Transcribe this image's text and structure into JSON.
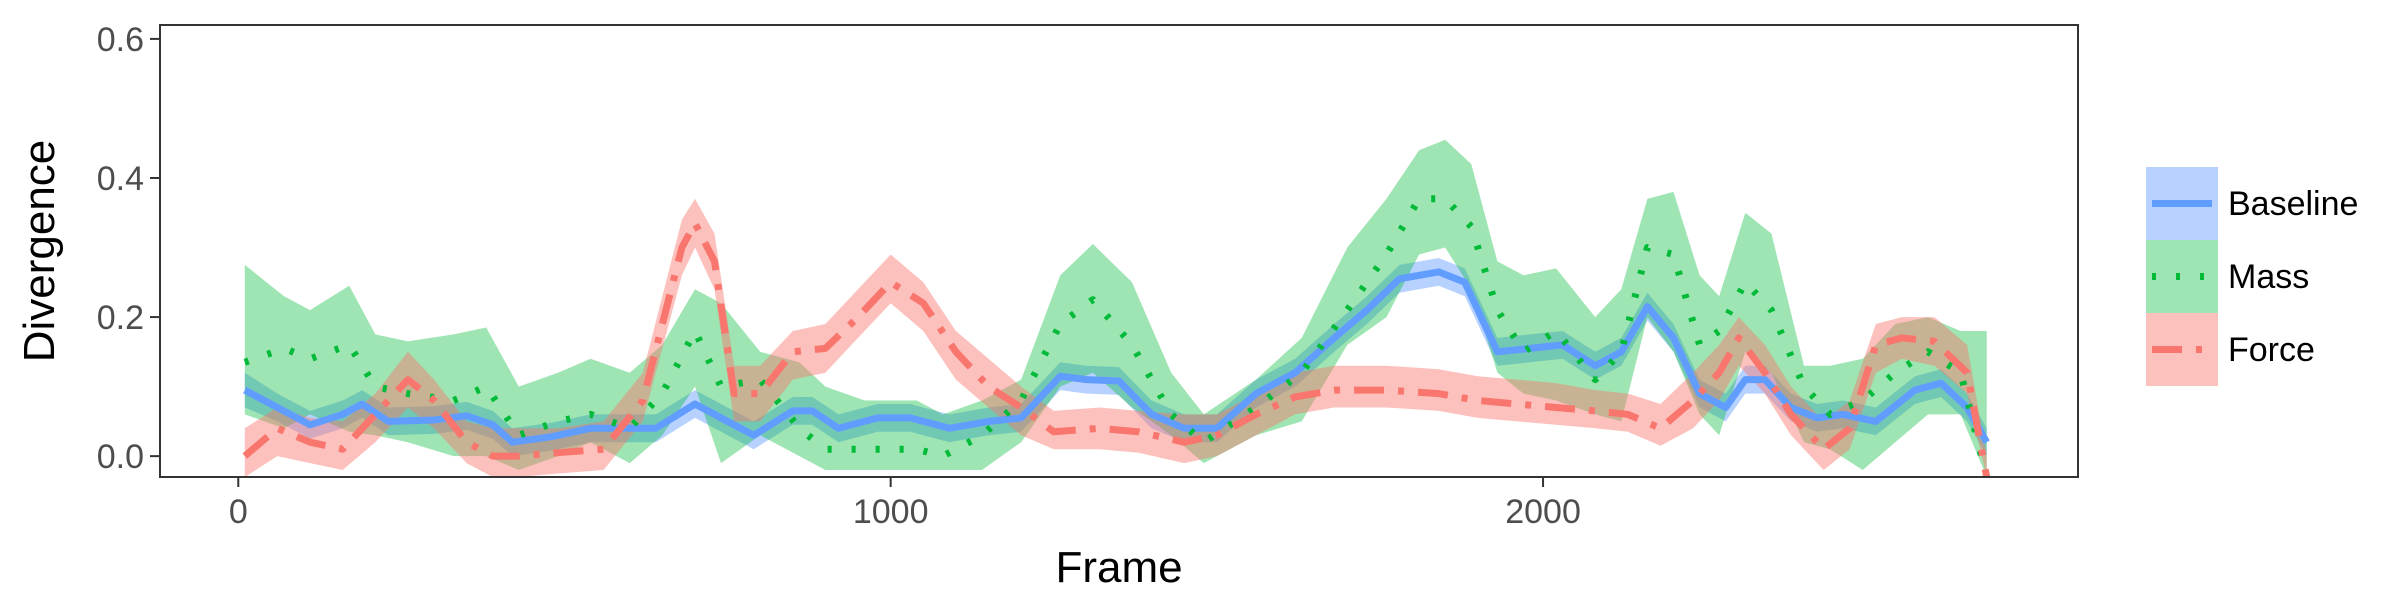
{
  "chart_data": {
    "type": "line",
    "xlabel": "Frame",
    "ylabel": "Divergence",
    "xlim": [
      -120,
      2820
    ],
    "ylim": [
      -0.03,
      0.62
    ],
    "xticks": [
      0,
      1000,
      2000
    ],
    "xtick_labels": [
      "0",
      "1000",
      "2000"
    ],
    "yticks": [
      0.0,
      0.2,
      0.4,
      0.6
    ],
    "ytick_labels": [
      "0.0",
      "0.2",
      "0.4",
      "0.6"
    ],
    "grid": false,
    "legend_position": "right",
    "series": [
      {
        "name": "Baseline",
        "color": "#619CFF",
        "line_style": "solid",
        "ribbon_opacity": 0.45,
        "points": [
          [
            10,
            0.095,
            0.07,
            0.12
          ],
          [
            60,
            0.07,
            0.05,
            0.09
          ],
          [
            110,
            0.045,
            0.025,
            0.065
          ],
          [
            160,
            0.06,
            0.04,
            0.08
          ],
          [
            190,
            0.075,
            0.055,
            0.095
          ],
          [
            230,
            0.05,
            0.03,
            0.07
          ],
          [
            300,
            0.052,
            0.032,
            0.072
          ],
          [
            350,
            0.058,
            0.038,
            0.078
          ],
          [
            390,
            0.045,
            0.025,
            0.065
          ],
          [
            420,
            0.02,
            0.0,
            0.04
          ],
          [
            480,
            0.028,
            0.008,
            0.048
          ],
          [
            540,
            0.04,
            0.02,
            0.06
          ],
          [
            600,
            0.04,
            0.02,
            0.06
          ],
          [
            640,
            0.04,
            0.02,
            0.06
          ],
          [
            700,
            0.075,
            0.055,
            0.095
          ],
          [
            750,
            0.05,
            0.03,
            0.07
          ],
          [
            790,
            0.03,
            0.01,
            0.05
          ],
          [
            850,
            0.065,
            0.045,
            0.085
          ],
          [
            880,
            0.065,
            0.045,
            0.085
          ],
          [
            920,
            0.04,
            0.02,
            0.06
          ],
          [
            980,
            0.055,
            0.035,
            0.075
          ],
          [
            1030,
            0.055,
            0.035,
            0.075
          ],
          [
            1090,
            0.04,
            0.02,
            0.06
          ],
          [
            1150,
            0.05,
            0.03,
            0.07
          ],
          [
            1200,
            0.055,
            0.035,
            0.075
          ],
          [
            1260,
            0.115,
            0.095,
            0.135
          ],
          [
            1300,
            0.11,
            0.09,
            0.13
          ],
          [
            1350,
            0.108,
            0.088,
            0.128
          ],
          [
            1400,
            0.06,
            0.04,
            0.08
          ],
          [
            1450,
            0.04,
            0.02,
            0.06
          ],
          [
            1500,
            0.04,
            0.02,
            0.06
          ],
          [
            1560,
            0.09,
            0.07,
            0.11
          ],
          [
            1620,
            0.12,
            0.1,
            0.14
          ],
          [
            1680,
            0.17,
            0.15,
            0.19
          ],
          [
            1730,
            0.21,
            0.19,
            0.23
          ],
          [
            1780,
            0.255,
            0.235,
            0.275
          ],
          [
            1840,
            0.265,
            0.245,
            0.285
          ],
          [
            1880,
            0.25,
            0.23,
            0.27
          ],
          [
            1930,
            0.15,
            0.13,
            0.17
          ],
          [
            1980,
            0.155,
            0.135,
            0.175
          ],
          [
            2030,
            0.16,
            0.14,
            0.18
          ],
          [
            2080,
            0.13,
            0.11,
            0.15
          ],
          [
            2120,
            0.15,
            0.13,
            0.17
          ],
          [
            2160,
            0.215,
            0.195,
            0.235
          ],
          [
            2200,
            0.17,
            0.15,
            0.19
          ],
          [
            2240,
            0.09,
            0.07,
            0.11
          ],
          [
            2280,
            0.07,
            0.05,
            0.09
          ],
          [
            2310,
            0.11,
            0.09,
            0.13
          ],
          [
            2340,
            0.11,
            0.09,
            0.13
          ],
          [
            2380,
            0.07,
            0.05,
            0.09
          ],
          [
            2420,
            0.055,
            0.035,
            0.075
          ],
          [
            2460,
            0.06,
            0.04,
            0.08
          ],
          [
            2510,
            0.05,
            0.03,
            0.07
          ],
          [
            2570,
            0.095,
            0.075,
            0.115
          ],
          [
            2610,
            0.105,
            0.085,
            0.125
          ],
          [
            2650,
            0.07,
            0.05,
            0.09
          ],
          [
            2680,
            0.02,
            0.0,
            0.04
          ]
        ]
      },
      {
        "name": "Mass",
        "color": "#00BA38",
        "line_style": "dotted",
        "ribbon_opacity": 0.38,
        "points": [
          [
            10,
            0.135,
            0.06,
            0.275
          ],
          [
            70,
            0.155,
            0.04,
            0.23
          ],
          [
            110,
            0.14,
            0.06,
            0.21
          ],
          [
            170,
            0.16,
            0.035,
            0.245
          ],
          [
            210,
            0.1,
            0.03,
            0.175
          ],
          [
            260,
            0.09,
            0.02,
            0.165
          ],
          [
            330,
            0.08,
            0.0,
            0.175
          ],
          [
            380,
            0.1,
            0.0,
            0.185
          ],
          [
            430,
            0.03,
            -0.02,
            0.1
          ],
          [
            490,
            0.05,
            0.0,
            0.12
          ],
          [
            540,
            0.06,
            0.02,
            0.14
          ],
          [
            600,
            0.04,
            -0.01,
            0.12
          ],
          [
            650,
            0.09,
            0.03,
            0.16
          ],
          [
            700,
            0.18,
            0.1,
            0.24
          ],
          [
            740,
            0.1,
            -0.01,
            0.22
          ],
          [
            800,
            0.11,
            0.03,
            0.15
          ],
          [
            860,
            0.04,
            0.0,
            0.135
          ],
          [
            900,
            0.01,
            -0.02,
            0.1
          ],
          [
            960,
            0.01,
            -0.02,
            0.08
          ],
          [
            1040,
            0.01,
            -0.02,
            0.08
          ],
          [
            1080,
            0.0,
            -0.02,
            0.06
          ],
          [
            1140,
            0.03,
            -0.02,
            0.08
          ],
          [
            1200,
            0.08,
            0.02,
            0.11
          ],
          [
            1260,
            0.19,
            0.1,
            0.26
          ],
          [
            1310,
            0.225,
            0.12,
            0.305
          ],
          [
            1370,
            0.16,
            0.07,
            0.25
          ],
          [
            1430,
            0.06,
            0.03,
            0.12
          ],
          [
            1480,
            0.02,
            -0.01,
            0.06
          ],
          [
            1560,
            0.07,
            0.03,
            0.11
          ],
          [
            1630,
            0.12,
            0.05,
            0.17
          ],
          [
            1700,
            0.21,
            0.16,
            0.3
          ],
          [
            1760,
            0.29,
            0.2,
            0.37
          ],
          [
            1810,
            0.37,
            0.29,
            0.44
          ],
          [
            1850,
            0.37,
            0.3,
            0.455
          ],
          [
            1890,
            0.33,
            0.24,
            0.42
          ],
          [
            1930,
            0.21,
            0.12,
            0.28
          ],
          [
            1970,
            0.15,
            0.09,
            0.26
          ],
          [
            2020,
            0.18,
            0.08,
            0.27
          ],
          [
            2080,
            0.11,
            0.06,
            0.2
          ],
          [
            2120,
            0.15,
            0.05,
            0.24
          ],
          [
            2160,
            0.3,
            0.2,
            0.37
          ],
          [
            2200,
            0.29,
            0.15,
            0.38
          ],
          [
            2240,
            0.16,
            0.06,
            0.26
          ],
          [
            2270,
            0.18,
            0.03,
            0.23
          ],
          [
            2310,
            0.25,
            0.15,
            0.35
          ],
          [
            2350,
            0.21,
            0.12,
            0.32
          ],
          [
            2400,
            0.1,
            0.02,
            0.13
          ],
          [
            2440,
            0.06,
            0.01,
            0.13
          ],
          [
            2490,
            0.08,
            -0.02,
            0.14
          ],
          [
            2540,
            0.12,
            0.02,
            0.19
          ],
          [
            2590,
            0.15,
            0.06,
            0.2
          ],
          [
            2640,
            0.12,
            0.06,
            0.18
          ],
          [
            2680,
            -0.03,
            -0.03,
            0.18
          ]
        ]
      },
      {
        "name": "Force",
        "color": "#F8766D",
        "line_style": "dashdot",
        "ribbon_opacity": 0.45,
        "points": [
          [
            10,
            0.0,
            -0.03,
            0.04
          ],
          [
            60,
            0.04,
            0.0,
            0.07
          ],
          [
            110,
            0.02,
            -0.01,
            0.055
          ],
          [
            160,
            0.01,
            -0.02,
            0.05
          ],
          [
            210,
            0.06,
            0.02,
            0.09
          ],
          [
            260,
            0.11,
            0.07,
            0.15
          ],
          [
            300,
            0.08,
            0.04,
            0.11
          ],
          [
            350,
            0.02,
            -0.01,
            0.05
          ],
          [
            390,
            0.0,
            -0.03,
            0.04
          ],
          [
            430,
            0.0,
            -0.03,
            0.04
          ],
          [
            490,
            0.005,
            -0.025,
            0.04
          ],
          [
            560,
            0.01,
            -0.02,
            0.05
          ],
          [
            620,
            0.08,
            0.05,
            0.12
          ],
          [
            680,
            0.3,
            0.26,
            0.34
          ],
          [
            700,
            0.335,
            0.3,
            0.37
          ],
          [
            730,
            0.28,
            0.24,
            0.32
          ],
          [
            760,
            0.09,
            0.05,
            0.13
          ],
          [
            800,
            0.09,
            0.05,
            0.13
          ],
          [
            850,
            0.15,
            0.11,
            0.18
          ],
          [
            900,
            0.155,
            0.12,
            0.19
          ],
          [
            950,
            0.2,
            0.17,
            0.24
          ],
          [
            1000,
            0.25,
            0.22,
            0.29
          ],
          [
            1050,
            0.22,
            0.18,
            0.25
          ],
          [
            1100,
            0.15,
            0.11,
            0.18
          ],
          [
            1150,
            0.1,
            0.07,
            0.14
          ],
          [
            1200,
            0.07,
            0.03,
            0.1
          ],
          [
            1250,
            0.035,
            0.01,
            0.065
          ],
          [
            1320,
            0.04,
            0.01,
            0.07
          ],
          [
            1380,
            0.035,
            0.005,
            0.065
          ],
          [
            1450,
            0.02,
            -0.01,
            0.06
          ],
          [
            1500,
            0.03,
            0.0,
            0.06
          ],
          [
            1560,
            0.06,
            0.03,
            0.09
          ],
          [
            1620,
            0.085,
            0.06,
            0.12
          ],
          [
            1680,
            0.095,
            0.07,
            0.13
          ],
          [
            1760,
            0.095,
            0.07,
            0.13
          ],
          [
            1840,
            0.09,
            0.065,
            0.125
          ],
          [
            1900,
            0.08,
            0.055,
            0.115
          ],
          [
            1960,
            0.075,
            0.05,
            0.11
          ],
          [
            2020,
            0.07,
            0.045,
            0.105
          ],
          [
            2080,
            0.065,
            0.04,
            0.095
          ],
          [
            2130,
            0.06,
            0.035,
            0.09
          ],
          [
            2180,
            0.04,
            0.015,
            0.075
          ],
          [
            2230,
            0.08,
            0.04,
            0.12
          ],
          [
            2270,
            0.12,
            0.08,
            0.16
          ],
          [
            2300,
            0.17,
            0.13,
            0.2
          ],
          [
            2340,
            0.12,
            0.09,
            0.16
          ],
          [
            2380,
            0.06,
            0.03,
            0.1
          ],
          [
            2430,
            0.01,
            -0.02,
            0.05
          ],
          [
            2470,
            0.04,
            0.01,
            0.08
          ],
          [
            2510,
            0.16,
            0.12,
            0.19
          ],
          [
            2550,
            0.17,
            0.14,
            0.2
          ],
          [
            2600,
            0.165,
            0.13,
            0.2
          ],
          [
            2650,
            0.12,
            0.09,
            0.16
          ],
          [
            2680,
            -0.03,
            -0.03,
            0.0
          ]
        ]
      }
    ]
  }
}
